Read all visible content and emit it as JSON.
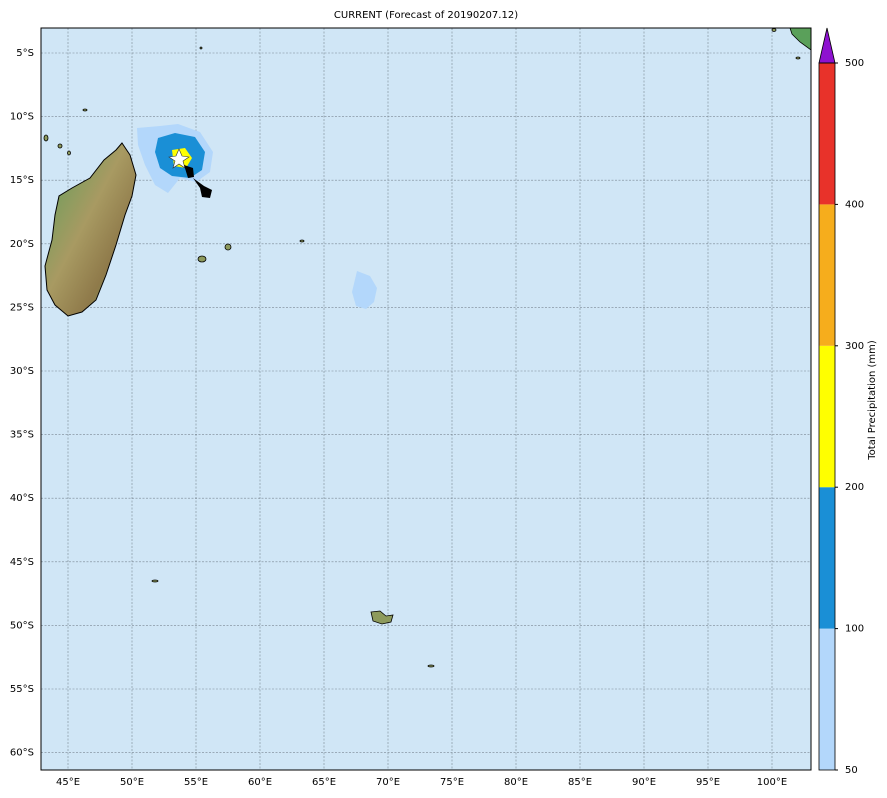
{
  "title": "CURRENT (Forecast of 20190207.12)",
  "lat_labels": [
    "5°S",
    "10°S",
    "15°S",
    "20°S",
    "25°S",
    "30°S",
    "35°S",
    "40°S",
    "45°S",
    "50°S",
    "55°S",
    "60°S"
  ],
  "lon_labels": [
    "45°E",
    "50°E",
    "55°E",
    "60°E",
    "65°E",
    "70°E",
    "75°E",
    "80°E",
    "85°E",
    "90°E",
    "95°E",
    "100°E"
  ],
  "colorbar": {
    "label": "Total Precipitation (mm)",
    "ticks": [
      50,
      100,
      200,
      300,
      400,
      500
    ],
    "colors": [
      "#b3d7fb",
      "#1a8fd6",
      "#ffff00",
      "#f6ad1c",
      "#e8322a"
    ],
    "extend_color": "#8e12d0"
  }
}
